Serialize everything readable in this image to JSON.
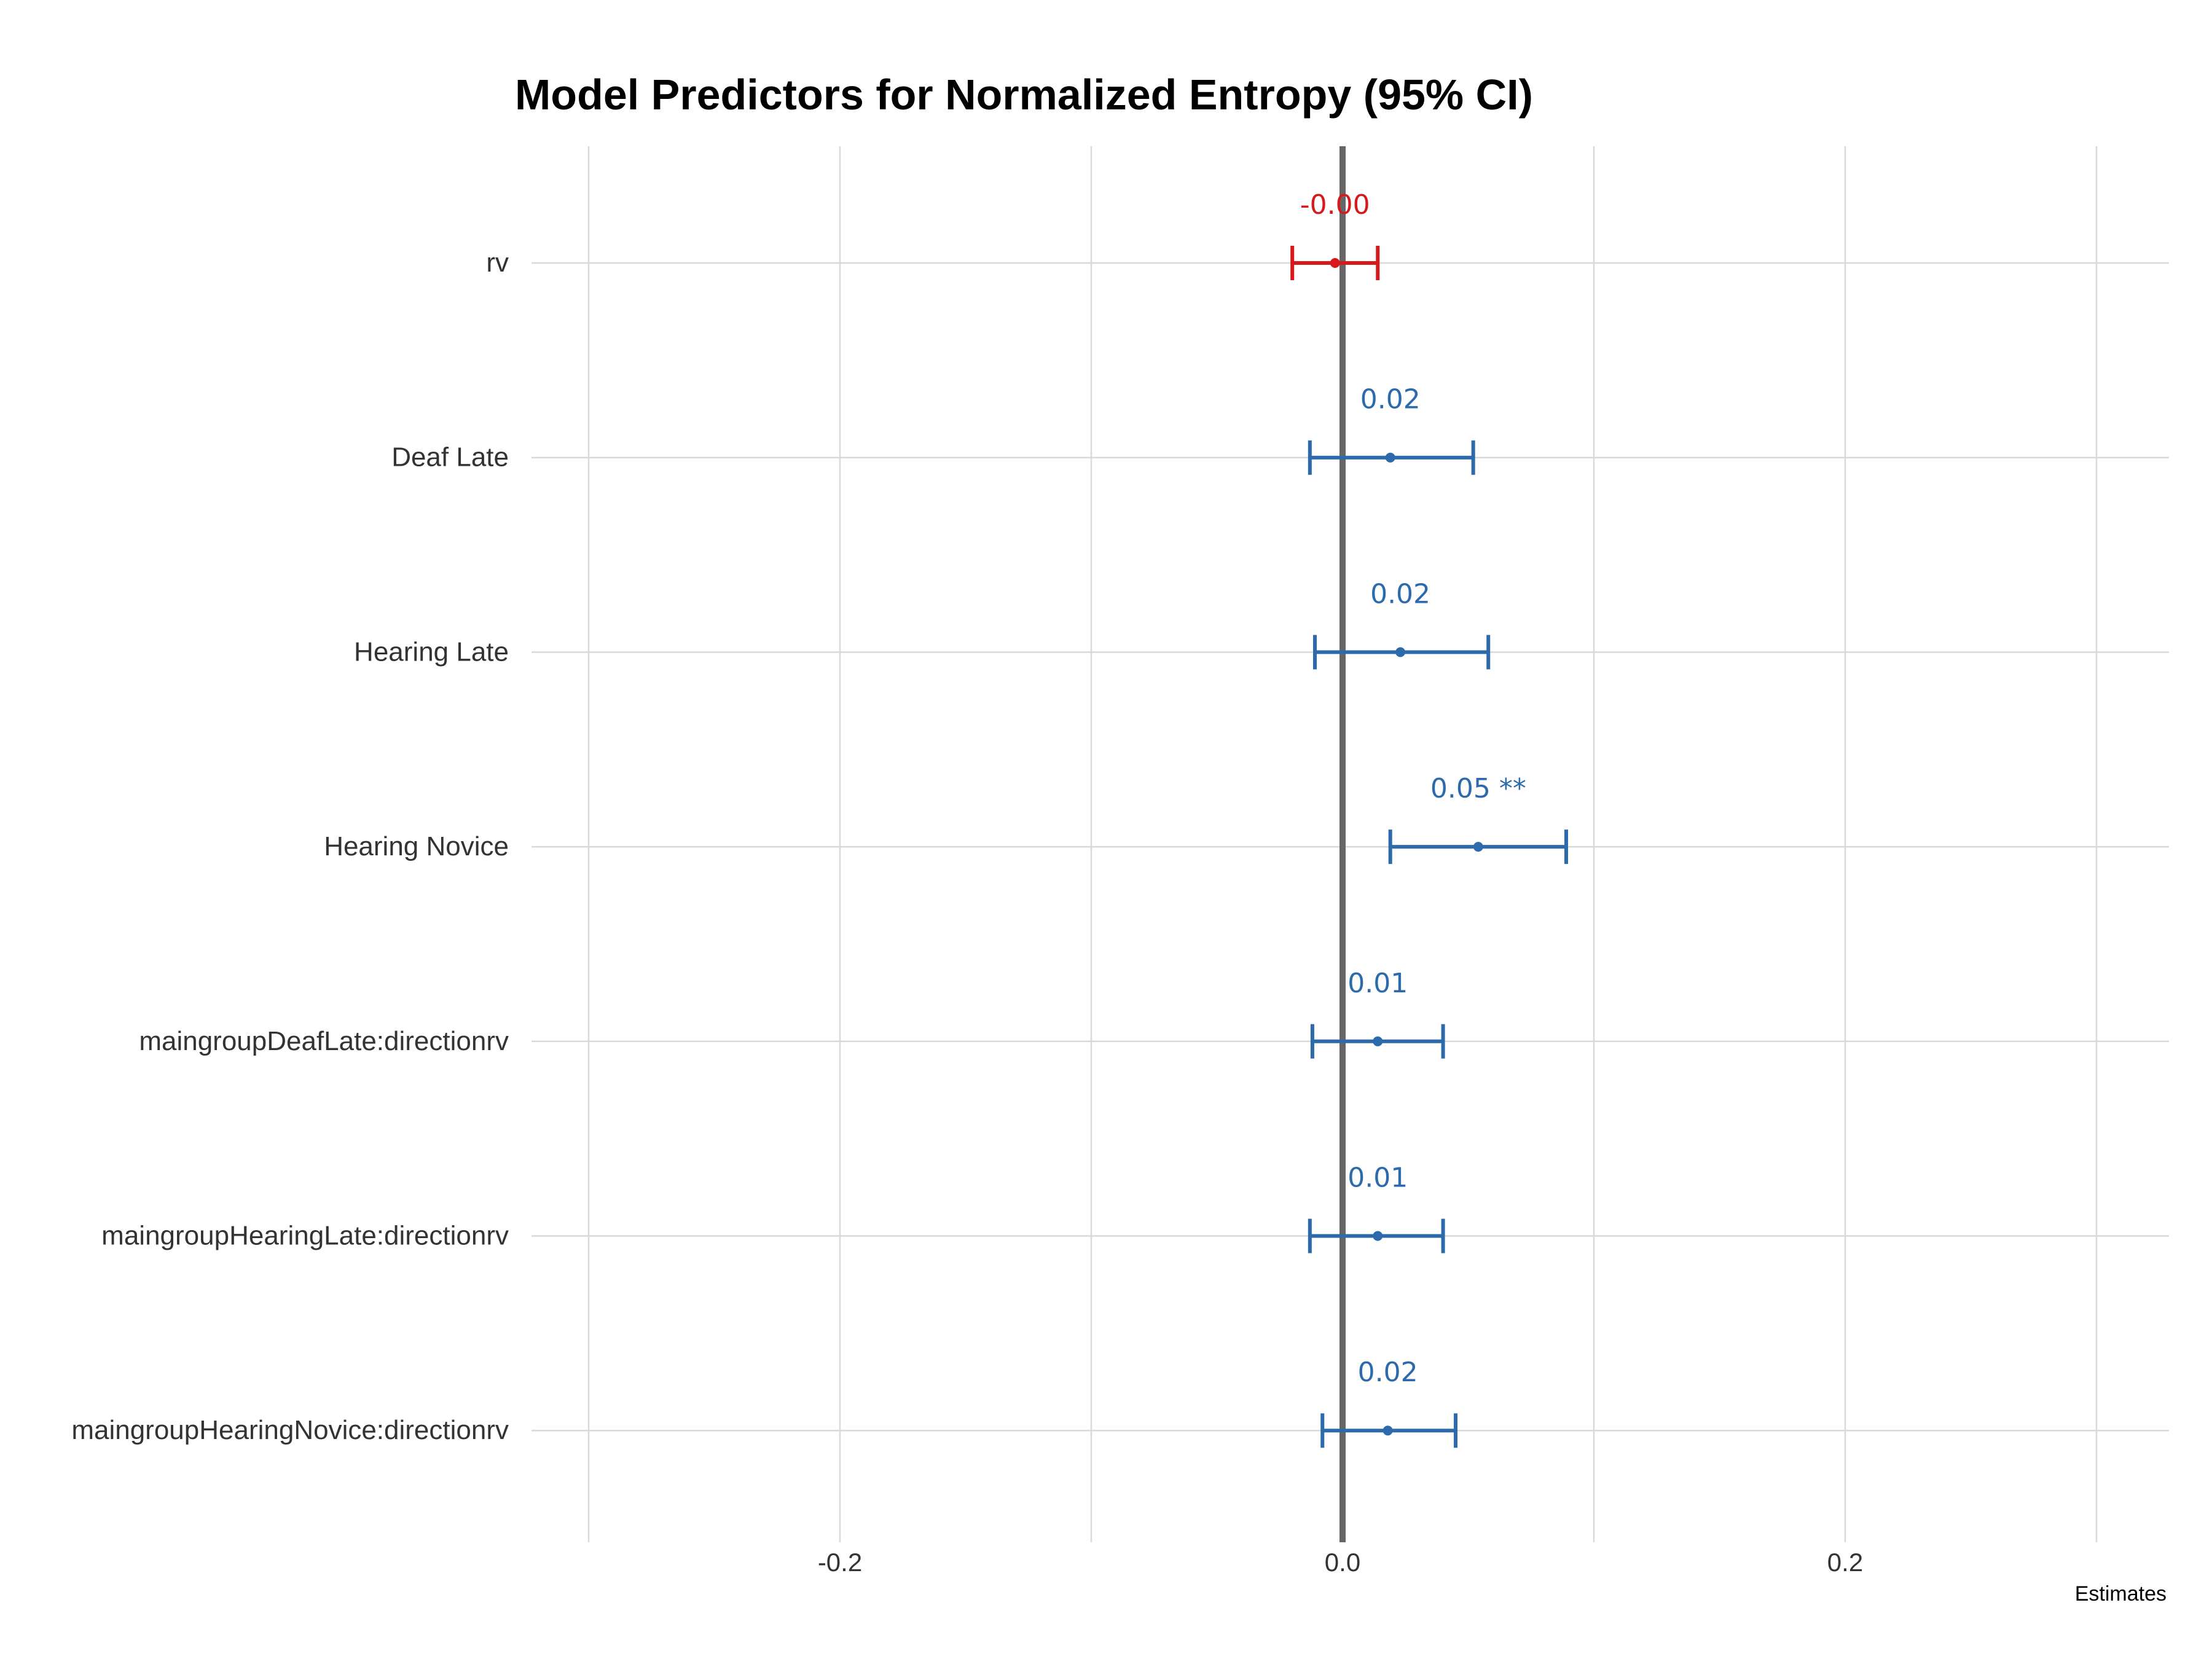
{
  "chart_data": {
    "type": "forest",
    "title": "Model Predictors for Normalized Entropy (95% CI)",
    "xlabel": "Estimates",
    "ylabel": "",
    "xlim": [
      -0.3,
      0.3
    ],
    "x_ticks": [
      -0.2,
      0.0,
      0.2
    ],
    "x_tick_labels": [
      "-0.2",
      "0.0",
      "0.2"
    ],
    "grid": true,
    "reference_line": 0.0,
    "colors": {
      "negative": "#d7191c",
      "positive": "#2c6aab",
      "reference": "#666666",
      "grid": "#d9d9d9"
    },
    "terms": [
      {
        "name": "rv",
        "estimate": -0.003,
        "ci_low": -0.02,
        "ci_high": 0.014,
        "label": "-0.00",
        "sign": "negative"
      },
      {
        "name": "Deaf Late",
        "estimate": 0.019,
        "ci_low": -0.013,
        "ci_high": 0.052,
        "label": "0.02",
        "sign": "positive"
      },
      {
        "name": "Hearing Late",
        "estimate": 0.023,
        "ci_low": -0.011,
        "ci_high": 0.058,
        "label": "0.02",
        "sign": "positive"
      },
      {
        "name": "Hearing Novice",
        "estimate": 0.054,
        "ci_low": 0.019,
        "ci_high": 0.089,
        "label": "0.05 **",
        "sign": "positive"
      },
      {
        "name": "maingroupDeafLate:directionrv",
        "estimate": 0.014,
        "ci_low": -0.012,
        "ci_high": 0.04,
        "label": "0.01",
        "sign": "positive"
      },
      {
        "name": "maingroupHearingLate:directionrv",
        "estimate": 0.014,
        "ci_low": -0.013,
        "ci_high": 0.04,
        "label": "0.01",
        "sign": "positive"
      },
      {
        "name": "maingroupHearingNovice:directionrv",
        "estimate": 0.018,
        "ci_low": -0.008,
        "ci_high": 0.045,
        "label": "0.02",
        "sign": "positive"
      }
    ]
  }
}
